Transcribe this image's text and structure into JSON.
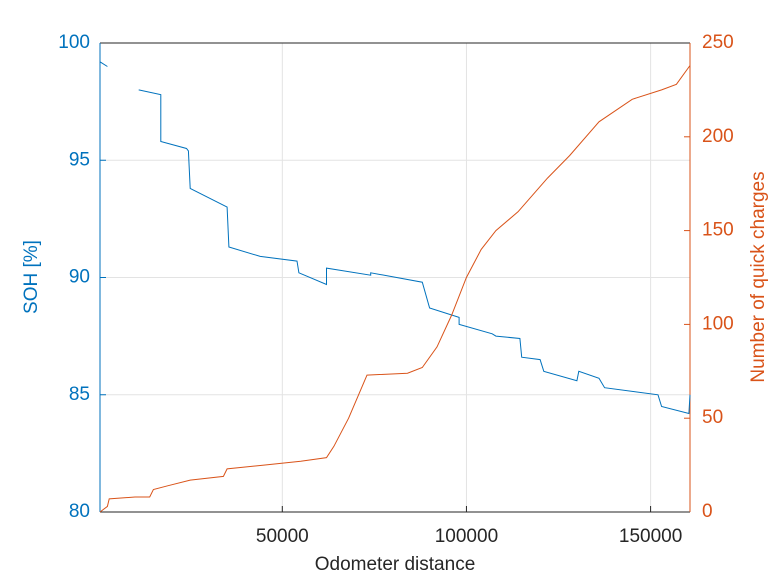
{
  "chart_data": {
    "type": "line",
    "xlabel": "Odometer distance",
    "ylabel": "SOH [%]",
    "y2label": "Number of quick charges",
    "xlim": [
      500,
      160700
    ],
    "xticks": [
      50000,
      100000,
      150000
    ],
    "ylim": [
      80,
      100
    ],
    "yticks": [
      80,
      85,
      90,
      95,
      100
    ],
    "y2lim": [
      0,
      250
    ],
    "y2ticks": [
      0,
      50,
      100,
      150,
      200,
      250
    ],
    "grid": true,
    "series": [
      {
        "name": "SOH [%]",
        "color": "#0072bd",
        "axis": "y",
        "x": [
          500,
          2500,
          5000,
          11000,
          17000,
          17000,
          24000,
          24500,
          25000,
          35000,
          35500,
          44000,
          54000,
          54500,
          62000,
          62000,
          74000,
          74000,
          88000,
          90000,
          98000,
          98000,
          107000,
          108000,
          114500,
          115000,
          120000,
          121000,
          130000,
          130500,
          136000,
          137500,
          152000,
          153000,
          160400,
          160700
        ],
        "values": [
          99.2,
          99.0,
          null,
          98.0,
          97.8,
          95.8,
          95.5,
          95.4,
          93.8,
          93.0,
          91.3,
          90.9,
          90.7,
          90.2,
          89.7,
          90.4,
          90.1,
          90.2,
          89.8,
          88.7,
          88.3,
          88.0,
          87.6,
          87.5,
          87.4,
          86.6,
          86.5,
          86.0,
          85.6,
          86.0,
          85.7,
          85.3,
          85.0,
          84.5,
          84.2,
          85.0
        ]
      },
      {
        "name": "Number of quick charges",
        "color": "#d95319",
        "axis": "y2",
        "x": [
          500,
          2500,
          3000,
          10000,
          14000,
          15000,
          19000,
          25000,
          34000,
          35000,
          45000,
          55000,
          62000,
          64000,
          68000,
          73000,
          84000,
          88000,
          92000,
          96000,
          100000,
          104000,
          108000,
          114000,
          122000,
          128000,
          136000,
          145000,
          153000,
          157000,
          160700
        ],
        "values": [
          0,
          3,
          7,
          8,
          8,
          12,
          14,
          17,
          19,
          23,
          25,
          27,
          29,
          35,
          50,
          73,
          74,
          77,
          88,
          105,
          125,
          140,
          150,
          160,
          178,
          190,
          208,
          220,
          225,
          228,
          238
        ]
      }
    ]
  }
}
